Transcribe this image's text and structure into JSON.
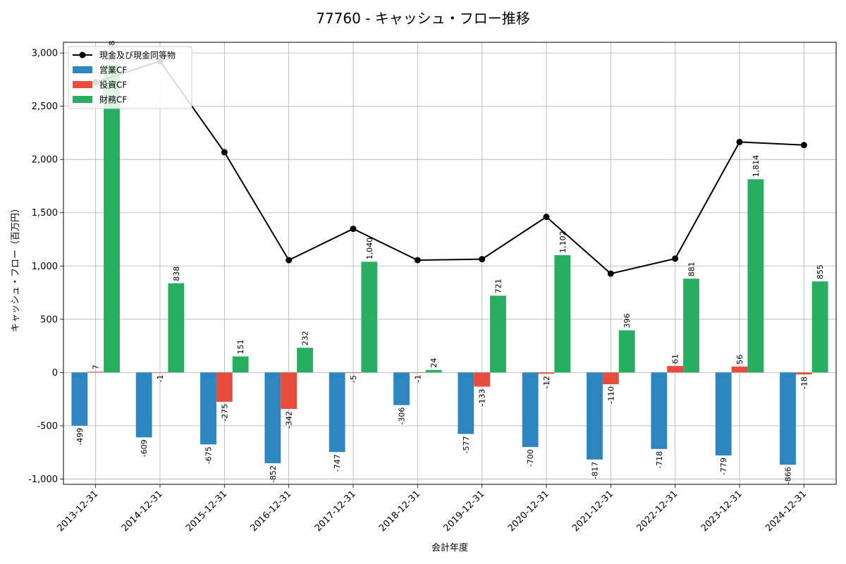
{
  "chart_data": {
    "type": "bar",
    "title": "77760 - キャッシュ・フロー推移",
    "xlabel": "会計年度",
    "ylabel": "キャッシュ・フロー（百万円）",
    "categories": [
      "2013-12-31",
      "2014-12-31",
      "2015-12-31",
      "2016-12-31",
      "2017-12-31",
      "2018-12-31",
      "2019-12-31",
      "2020-12-31",
      "2021-12-31",
      "2022-12-31",
      "2023-12-31",
      "2024-12-31"
    ],
    "ylim": [
      -1050,
      3100
    ],
    "yticks": [
      -1000,
      -500,
      0,
      500,
      1000,
      1500,
      2000,
      2500,
      3000
    ],
    "ytick_labels": [
      "-1,000",
      "-500",
      "0",
      "500",
      "1,000",
      "1,500",
      "2,000",
      "2,500",
      "3,000"
    ],
    "grid": true,
    "legend_position": "top-left",
    "series": [
      {
        "name": "営業CF",
        "kind": "bar",
        "color": "#2e86c1",
        "values": [
          -499,
          -609,
          -675,
          -852,
          -747,
          -306,
          -577,
          -700,
          -817,
          -718,
          -779,
          -866
        ],
        "labels": [
          "-499",
          "-609",
          "-675",
          "-852",
          "-747",
          "-306",
          "-577",
          "-700",
          "-817",
          "-718",
          "-779",
          "-866"
        ]
      },
      {
        "name": "投資CF",
        "kind": "bar",
        "color": "#e74c3c",
        "values": [
          7,
          -1,
          -275,
          -342,
          -5,
          -1,
          -133,
          -12,
          -110,
          61,
          56,
          -18
        ],
        "labels": [
          "7",
          "-1",
          "-275",
          "-342",
          "-5",
          "-1",
          "-133",
          "-12",
          "-110",
          "61",
          "56",
          "-18"
        ]
      },
      {
        "name": "財務CF",
        "kind": "bar",
        "color": "#27ae60",
        "values": [
          2888,
          838,
          151,
          232,
          1040,
          24,
          721,
          1102,
          396,
          881,
          1814,
          855
        ],
        "labels": [
          "2,888",
          "838",
          "151",
          "232",
          "1,040",
          "24",
          "721",
          "1,102",
          "396",
          "881",
          "1,814",
          "855"
        ]
      },
      {
        "name": "現金及び現金同等物",
        "kind": "line",
        "color": "#000000",
        "values": [
          2725,
          2923,
          2068,
          1055,
          1349,
          1055,
          1064,
          1461,
          928,
          1069,
          2164,
          2135
        ]
      }
    ]
  }
}
